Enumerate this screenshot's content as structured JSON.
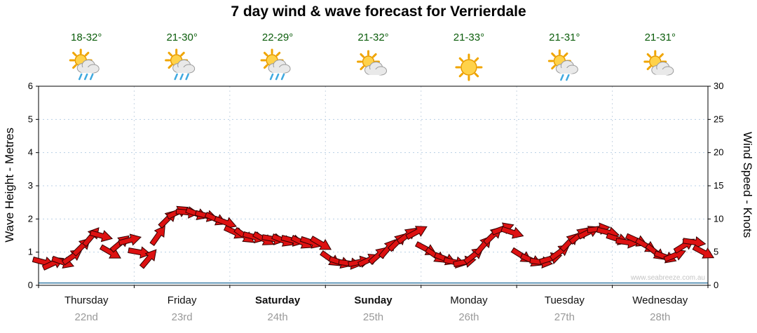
{
  "chart_data": {
    "type": "scatter",
    "subtype": "wind-direction-arrows-over-time",
    "title": "7 day wind & wave forecast for Verrierdale",
    "watermark": "www.seabreeze.com.au",
    "ylabel_left": "Wave Height - Metres",
    "ylabel_right": "Wind Speed - Knots",
    "ylim_left": [
      0,
      6
    ],
    "ylim_right": [
      0,
      30
    ],
    "left_ticks": [
      0,
      1,
      2,
      3,
      4,
      5,
      6
    ],
    "right_ticks": [
      0,
      5,
      10,
      15,
      20,
      25,
      30
    ],
    "grid": true,
    "wave_line_m": 0.07,
    "colors": {
      "arrow_fill": "#dd1111",
      "arrow_stroke": "#330000",
      "grid_h": "#b8cfe5",
      "grid_v": "#c9d6e2",
      "frame": "#000000",
      "temp_text": "#0a5c0a",
      "day_text": "#111111",
      "date_text": "#999999",
      "wave_line": "#3a7ca5",
      "sun_fill": "#ffd24a",
      "sun_stroke": "#e89b00",
      "ray": "#f0a500",
      "cloud_fill": "#e9e9e9",
      "cloud_stroke": "#9a9a9a",
      "rain": "#3fa9df"
    },
    "days": [
      {
        "name": "Thursday",
        "date": "22nd",
        "temp": "18-32°",
        "icon": "sun-cloud-rain",
        "bold": false,
        "wind_knots": [
          3.5,
          3.3,
          3.5,
          4.3,
          5.8,
          7.3,
          7.5,
          5.0,
          6.3,
          6.8
        ],
        "wind_dir_deg": [
          15,
          -25,
          20,
          -35,
          -45,
          -50,
          15,
          30,
          -40,
          -15
        ]
      },
      {
        "name": "Friday",
        "date": "23rd",
        "temp": "21-30°",
        "icon": "sun-cloud-rain",
        "bold": false,
        "wind_knots": [
          5.0,
          4.0,
          7.5,
          10.0,
          11.0,
          11.0,
          10.8,
          10.5,
          10.0,
          9.5
        ],
        "wind_dir_deg": [
          10,
          -50,
          -55,
          -45,
          -25,
          5,
          20,
          15,
          25,
          20
        ]
      },
      {
        "name": "Saturday",
        "date": "24th",
        "temp": "22-29°",
        "icon": "sun-cloud-rain",
        "bold": true,
        "wind_knots": [
          8.0,
          7.5,
          7.3,
          7.0,
          7.0,
          6.8,
          6.8,
          6.5,
          6.5,
          6.3
        ],
        "wind_dir_deg": [
          25,
          35,
          15,
          28,
          10,
          22,
          14,
          26,
          18,
          30
        ]
      },
      {
        "name": "Sunday",
        "date": "25th",
        "temp": "21-32°",
        "icon": "sun-cloud",
        "bold": true,
        "wind_knots": [
          4.0,
          3.5,
          3.3,
          3.5,
          3.8,
          4.5,
          5.5,
          6.5,
          7.5,
          8.0
        ],
        "wind_dir_deg": [
          35,
          18,
          8,
          -12,
          -25,
          -42,
          -50,
          -45,
          -38,
          -28
        ]
      },
      {
        "name": "Monday",
        "date": "26th",
        "temp": "21-33°",
        "icon": "sun",
        "bold": false,
        "wind_knots": [
          5.5,
          4.5,
          4.0,
          3.5,
          3.5,
          4.5,
          6.0,
          7.5,
          8.5,
          8.0
        ],
        "wind_dir_deg": [
          28,
          35,
          22,
          12,
          -12,
          -38,
          -50,
          -44,
          -20,
          18
        ]
      },
      {
        "name": "Tuesday",
        "date": "27th",
        "temp": "21-31°",
        "icon": "sun-cloud-rain-light",
        "bold": false,
        "wind_knots": [
          4.5,
          3.8,
          3.5,
          4.0,
          5.0,
          6.5,
          7.5,
          8.0,
          8.5,
          8.0
        ],
        "wind_dir_deg": [
          32,
          24,
          8,
          -16,
          -36,
          -46,
          -40,
          -26,
          -8,
          14
        ]
      },
      {
        "name": "Wednesday",
        "date": "28th",
        "temp": "21-31°",
        "icon": "sun-cloud",
        "bold": false,
        "wind_knots": [
          7.0,
          6.5,
          6.8,
          6.0,
          5.0,
          4.3,
          4.5,
          6.0,
          6.5,
          5.0
        ],
        "wind_dir_deg": [
          18,
          8,
          24,
          30,
          38,
          20,
          -22,
          -32,
          8,
          28
        ]
      }
    ]
  }
}
